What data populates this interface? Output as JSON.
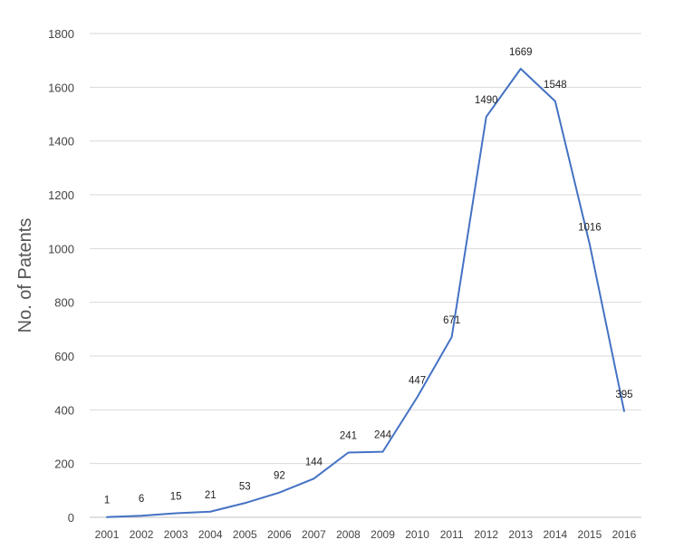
{
  "chart_data": {
    "type": "line",
    "title": "",
    "xlabel": "",
    "ylabel": "No. of Patents",
    "ylim": [
      0,
      1800
    ],
    "yticks": [
      0,
      200,
      400,
      600,
      800,
      1000,
      1200,
      1400,
      1600,
      1800
    ],
    "grid": true,
    "legend": "none",
    "categories": [
      "2001",
      "2002",
      "2003",
      "2004",
      "2005",
      "2006",
      "2007",
      "2008",
      "2009",
      "2010",
      "2011",
      "2012",
      "2013",
      "2014",
      "2015",
      "2016"
    ],
    "series": [
      {
        "values": [
          1,
          6,
          15,
          21,
          53,
          92,
          144,
          241,
          244,
          447,
          671,
          1490,
          1669,
          1548,
          1016,
          395
        ],
        "color": "#4472c4"
      }
    ]
  }
}
